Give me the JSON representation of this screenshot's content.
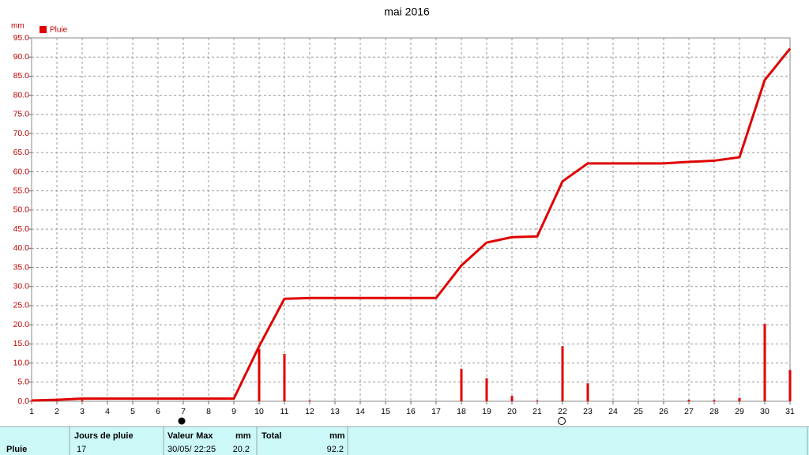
{
  "chart_data": {
    "type": "bar",
    "title": "mai 2016",
    "y_unit": "mm",
    "x": [
      1,
      2,
      3,
      4,
      5,
      6,
      7,
      8,
      9,
      10,
      11,
      12,
      13,
      14,
      15,
      16,
      17,
      18,
      19,
      20,
      21,
      22,
      23,
      24,
      25,
      26,
      27,
      28,
      29,
      30,
      31
    ],
    "series": [
      {
        "name": "Pluie",
        "type": "bar",
        "color": "#e00000",
        "values": [
          0.2,
          0.2,
          0.3,
          0,
          0,
          0,
          0,
          0,
          0,
          13.7,
          12.4,
          0.2,
          0,
          0,
          0,
          0,
          0,
          8.5,
          6.0,
          1.4,
          0.2,
          14.4,
          4.7,
          0,
          0,
          0,
          0.4,
          0.3,
          0.9,
          20.2,
          8.2
        ]
      },
      {
        "type": "line",
        "color": "#e00000",
        "values": [
          0.2,
          0.4,
          0.7,
          0.7,
          0.7,
          0.7,
          0.7,
          0.7,
          0.7,
          14.4,
          26.8,
          27.0,
          27.0,
          27.0,
          27.0,
          27.0,
          27.0,
          35.5,
          41.5,
          42.9,
          43.1,
          57.5,
          62.2,
          62.2,
          62.2,
          62.2,
          62.6,
          62.9,
          63.8,
          84.0,
          92.2
        ]
      }
    ],
    "xlim": [
      1,
      31
    ],
    "xticks": [
      1,
      2,
      3,
      4,
      5,
      6,
      7,
      8,
      9,
      10,
      11,
      12,
      13,
      14,
      15,
      16,
      17,
      18,
      19,
      20,
      21,
      22,
      23,
      24,
      25,
      26,
      27,
      28,
      29,
      30,
      31
    ],
    "ylim": [
      0,
      95
    ],
    "yticks": [
      {
        "value": 0,
        "label": "0.0"
      },
      {
        "value": 5,
        "label": "5.0"
      },
      {
        "value": 10,
        "label": "10.0"
      },
      {
        "value": 15,
        "label": "15.0"
      },
      {
        "value": 20,
        "label": "20.0"
      },
      {
        "value": 25,
        "label": "25.0"
      },
      {
        "value": 30,
        "label": "30.0"
      },
      {
        "value": 35,
        "label": "35.0"
      },
      {
        "value": 40,
        "label": "40.0"
      },
      {
        "value": 45,
        "label": "45.0"
      },
      {
        "value": 50,
        "label": "50.0"
      },
      {
        "value": 55,
        "label": "55.0"
      },
      {
        "value": 60,
        "label": "60.0"
      },
      {
        "value": 65,
        "label": "65.0"
      },
      {
        "value": 70,
        "label": "70.0"
      },
      {
        "value": 75,
        "label": "75.0"
      },
      {
        "value": 80,
        "label": "80.0"
      },
      {
        "value": 85,
        "label": "85.0"
      },
      {
        "value": 90,
        "label": "90.0"
      },
      {
        "value": 95,
        "label": "95.0"
      }
    ],
    "grid": true
  },
  "table": {
    "header": [
      "Jours de pluie",
      "Valeur Max",
      "mm",
      "Total",
      "mm"
    ],
    "rows": [
      [
        "Pluie",
        "17",
        "30/05/ 22:25",
        "20.2",
        "92.2"
      ]
    ]
  }
}
